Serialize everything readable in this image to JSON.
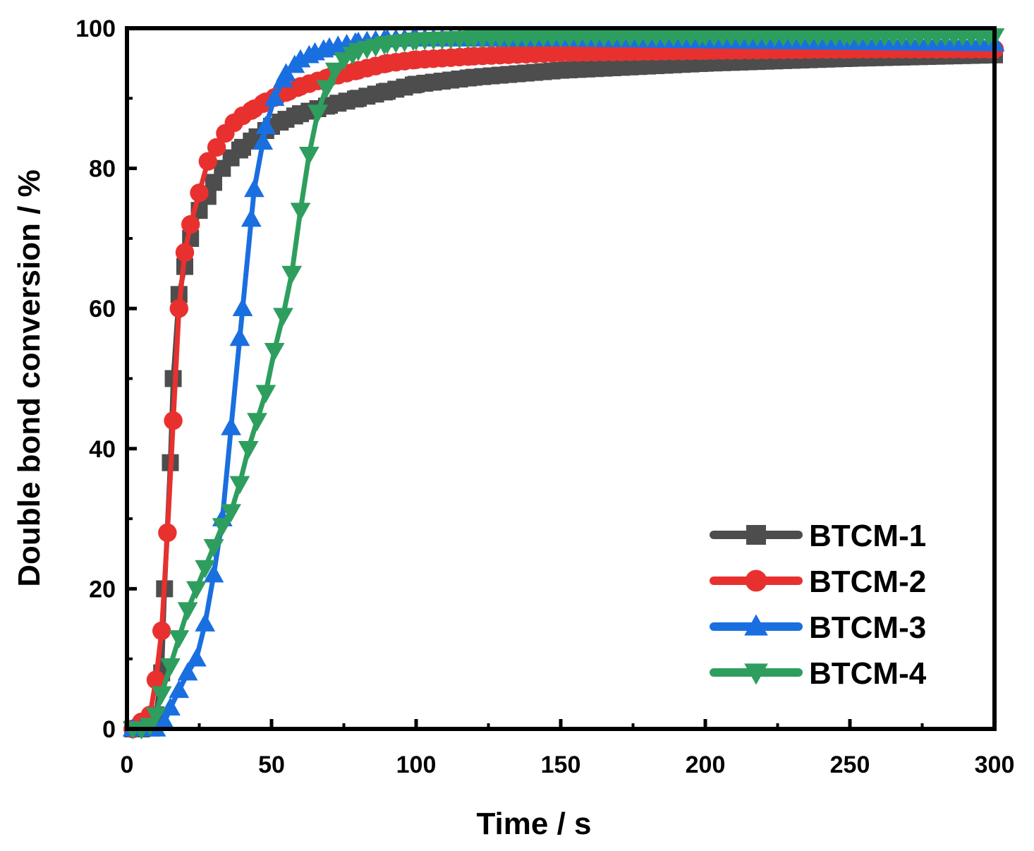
{
  "chart_data": {
    "type": "line",
    "title": "",
    "xlabel": "Time / s",
    "ylabel": "Double bond conversion / %",
    "xlim": [
      0,
      300
    ],
    "ylim": [
      0,
      100
    ],
    "xticks": [
      0,
      50,
      100,
      150,
      200,
      250,
      300
    ],
    "yticks": [
      0,
      20,
      40,
      60,
      80,
      100
    ],
    "grid": false,
    "legend_position": "bottom-right",
    "series": [
      {
        "name": "BTCM-1",
        "color": "#4d4d4d",
        "marker": "square",
        "x": [
          2,
          5,
          8,
          10,
          12,
          13,
          15,
          16,
          18,
          20,
          22,
          25,
          28,
          30,
          33,
          36,
          40,
          45,
          50,
          55,
          60,
          70,
          80,
          90,
          100,
          120,
          150,
          200,
          250,
          300
        ],
        "y": [
          0,
          0,
          0.5,
          2,
          8,
          20,
          38,
          50,
          62,
          66,
          70,
          74,
          76,
          78,
          80,
          81.5,
          83,
          84.5,
          86,
          87,
          87.8,
          89,
          90,
          91,
          92,
          93,
          94,
          95,
          95.7,
          96.2
        ]
      },
      {
        "name": "BTCM-2",
        "color": "#e8312f",
        "marker": "circle",
        "x": [
          2,
          5,
          8,
          10,
          12,
          14,
          16,
          18,
          20,
          22,
          25,
          28,
          31,
          34,
          37,
          40,
          44,
          48,
          52,
          56,
          60,
          70,
          80,
          90,
          100,
          120,
          150,
          200,
          250,
          300
        ],
        "y": [
          0,
          1,
          2,
          7,
          14,
          28,
          44,
          60,
          68,
          72,
          76.5,
          81,
          83,
          85,
          86.5,
          87.5,
          88.5,
          89.5,
          90.3,
          91,
          91.7,
          93,
          94,
          95,
          95.5,
          96,
          96.5,
          96.8,
          97,
          97
        ]
      },
      {
        "name": "BTCM-3",
        "color": "#1a6fe0",
        "marker": "triangle-up",
        "x": [
          2,
          5,
          8,
          10,
          13,
          15,
          18,
          21,
          24,
          27,
          30,
          33,
          36,
          40,
          44,
          48,
          51,
          55,
          60,
          65,
          70,
          80,
          90,
          100,
          120,
          150,
          200,
          250,
          300
        ],
        "y": [
          0,
          0,
          0,
          0,
          1,
          3,
          5.5,
          8,
          10,
          15,
          22,
          30,
          43,
          60,
          77,
          86,
          90,
          93.5,
          95.5,
          96.5,
          97.2,
          98,
          98.4,
          98.5,
          98.5,
          98.5,
          98.2,
          98,
          97.8
        ]
      },
      {
        "name": "BTCM-4",
        "color": "#2e9e5e",
        "marker": "triangle-down",
        "x": [
          2,
          5,
          8,
          10,
          12,
          15,
          18,
          21,
          24,
          27,
          30,
          33,
          36,
          39,
          42,
          45,
          48,
          51,
          54,
          57,
          60,
          63,
          66,
          69,
          72,
          75,
          80,
          90,
          100,
          120,
          150,
          200,
          250,
          300
        ],
        "y": [
          0,
          0,
          0.5,
          2,
          5,
          9,
          13,
          17,
          20,
          23,
          26,
          29,
          31,
          35,
          40,
          44,
          48,
          54,
          59,
          65,
          74,
          82,
          88,
          91.5,
          94,
          95.5,
          96.8,
          97.8,
          98.3,
          98.6,
          98.8,
          98.9,
          98.9,
          98.9
        ]
      }
    ]
  }
}
